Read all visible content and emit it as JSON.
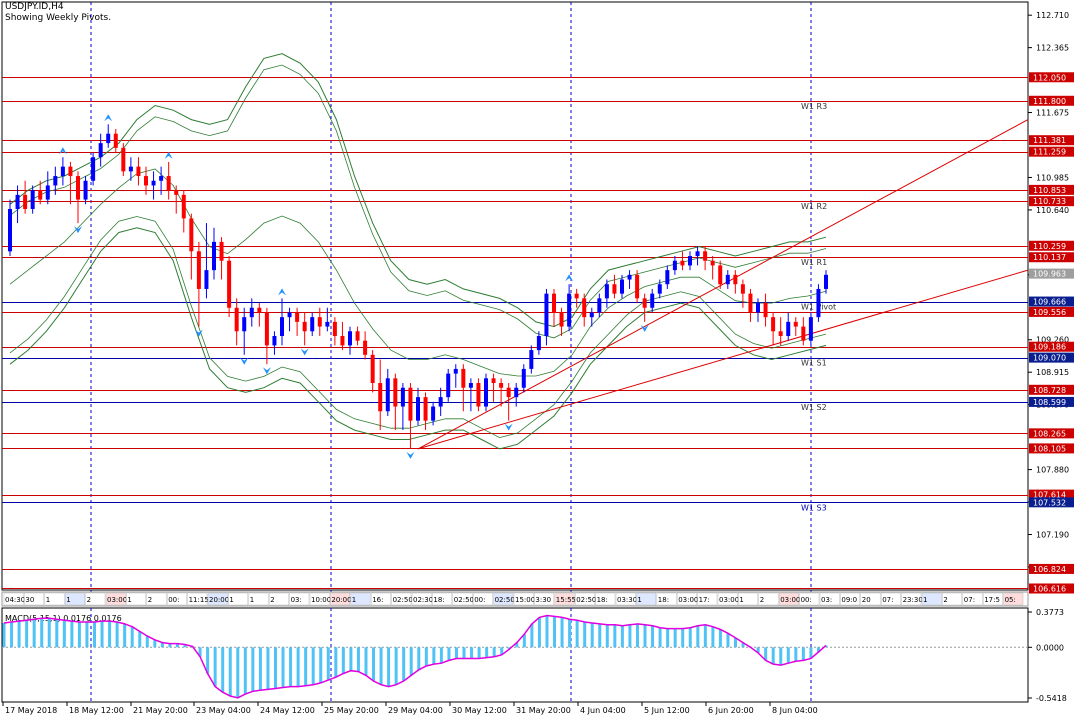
{
  "header": {
    "symbol": "USDJPY.ID,H4",
    "subtitle": "Showing Weekly Pivots."
  },
  "colors": {
    "background": "#ffffff",
    "axis": "#000000",
    "bull_candle": "#0000ff",
    "bear_candle": "#ff0000",
    "red_level": "#cc0000",
    "blue_level": "#0000aa",
    "bands": "#2e7d32",
    "trendline": "#dd0000",
    "grid_vertical": "#0000cc",
    "fractal": "#1e90ff",
    "macd_hist": "#4fc3f7",
    "macd_signal": "#e000e0",
    "label_red_bg": "#cc0000",
    "label_blue_bg": "#0a1f8f",
    "label_gray_bg": "#9e9e9e",
    "label_text": "#ffffff"
  },
  "price_axis": {
    "ticks": [
      "112.710",
      "112.365",
      "111.675",
      "110.985",
      "110.640",
      "109.950",
      "109.260",
      "108.915",
      "108.570",
      "107.880",
      "107.535",
      "107.190",
      "106.845"
    ]
  },
  "pivot_labels": {
    "r3": "W1 R3",
    "r2": "W1 R2",
    "r1": "W1 R1",
    "pivot": "W1 Pivot",
    "s1": "W1 S1",
    "s2": "W1 S2",
    "s3": "W1 S3"
  },
  "level_tags": [
    {
      "text": "112.050",
      "kind": "red",
      "price": 112.05
    },
    {
      "text": "111.800",
      "kind": "red",
      "price": 111.8
    },
    {
      "text": "111.381",
      "kind": "red",
      "price": 111.381
    },
    {
      "text": "111.259",
      "kind": "red",
      "price": 111.259
    },
    {
      "text": "110.853",
      "kind": "red",
      "price": 110.853
    },
    {
      "text": "110.733",
      "kind": "red",
      "price": 110.733
    },
    {
      "text": "110.259",
      "kind": "red",
      "price": 110.259
    },
    {
      "text": "110.137",
      "kind": "red",
      "price": 110.137
    },
    {
      "text": "109.963",
      "kind": "gray",
      "price": 109.963
    },
    {
      "text": "109.666",
      "kind": "blue",
      "price": 109.666
    },
    {
      "text": "109.556",
      "kind": "red",
      "price": 109.556
    },
    {
      "text": "109.186",
      "kind": "red",
      "price": 109.186
    },
    {
      "text": "109.070",
      "kind": "blue",
      "price": 109.07
    },
    {
      "text": "108.728",
      "kind": "red",
      "price": 108.728
    },
    {
      "text": "108.599",
      "kind": "blue",
      "price": 108.599
    },
    {
      "text": "108.265",
      "kind": "red",
      "price": 108.265
    },
    {
      "text": "108.105",
      "kind": "red",
      "price": 108.105
    },
    {
      "text": "107.614",
      "kind": "red",
      "price": 107.614
    },
    {
      "text": "107.532",
      "kind": "blue",
      "price": 107.532
    },
    {
      "text": "106.824",
      "kind": "red",
      "price": 106.824
    },
    {
      "text": "106.616",
      "kind": "red",
      "price": 106.616
    }
  ],
  "macd": {
    "label": "MACD(5,15,1) 0.0176 0.0176",
    "ticks": [
      "0.3773",
      "0.0000",
      "-0.5418"
    ]
  },
  "time_axis": {
    "labels": [
      "17 May 2018",
      "18 May 12:00",
      "21 May 20:00",
      "23 May 04:00",
      "24 May 12:00",
      "25 May 20:00",
      "29 May 04:00",
      "30 May 12:00",
      "31 May 20:00",
      "4 Jun 04:00",
      "5 Jun 12:00",
      "6 Jun 20:00",
      "8 Jun 04:00"
    ]
  },
  "session_strip": {
    "texts": [
      "04:30",
      "30",
      "1",
      "1",
      "2",
      "03:00",
      "1",
      "2",
      "00:",
      "11:15",
      "20:00",
      "1",
      "1",
      "2",
      "03:",
      "10:00",
      "20:00",
      "1",
      "16:",
      "02:50",
      "02:30",
      "18:",
      "02:50",
      "00:",
      "02:50",
      "15:00",
      "3:30",
      "15:55",
      "02:50",
      "18:",
      "03:30",
      "1",
      "18:",
      "03:00",
      "17:",
      "03:00",
      "1",
      "2",
      "03:00",
      "00:",
      "03:",
      "09:0",
      "20",
      "07:",
      "23:30",
      "1",
      "2",
      "07:",
      "17:5",
      "05:"
    ]
  },
  "chart_data": {
    "type": "candlestick",
    "title": "USDJPY.ID,H4",
    "subtitle": "Showing Weekly Pivots.",
    "x_range": [
      "17 May 2018",
      "8 Jun 2018"
    ],
    "ylim": [
      106.6,
      112.85
    ],
    "weekly_pivots": {
      "R3": 111.8,
      "R2": 110.733,
      "R1": 110.137,
      "Pivot": 109.666,
      "S1": 109.07,
      "S2": 108.599,
      "S3": 107.532
    },
    "candles": [
      [
        110.2,
        110.65,
        110.75,
        110.15
      ],
      [
        110.65,
        110.8,
        110.9,
        110.5
      ],
      [
        110.8,
        110.65,
        110.95,
        110.6
      ],
      [
        110.65,
        110.85,
        110.9,
        110.6
      ],
      [
        110.85,
        110.75,
        110.95,
        110.7
      ],
      [
        110.75,
        110.9,
        111.05,
        110.7
      ],
      [
        110.9,
        111.0,
        111.1,
        110.8
      ],
      [
        111.0,
        111.1,
        111.2,
        110.9
      ],
      [
        111.1,
        111.0,
        111.15,
        110.7
      ],
      [
        111.0,
        110.75,
        111.05,
        110.5
      ],
      [
        110.75,
        110.95,
        111.0,
        110.7
      ],
      [
        110.95,
        111.2,
        111.25,
        110.9
      ],
      [
        111.2,
        111.35,
        111.45,
        111.1
      ],
      [
        111.35,
        111.45,
        111.55,
        111.3
      ],
      [
        111.45,
        111.3,
        111.5,
        111.25
      ],
      [
        111.3,
        111.05,
        111.35,
        111.0
      ],
      [
        111.05,
        111.1,
        111.2,
        110.95
      ],
      [
        111.1,
        111.0,
        111.2,
        110.9
      ],
      [
        111.0,
        110.9,
        111.1,
        110.8
      ],
      [
        110.9,
        110.95,
        111.05,
        110.75
      ],
      [
        110.95,
        111.0,
        111.1,
        110.8
      ],
      [
        111.0,
        110.85,
        111.15,
        110.75
      ],
      [
        110.85,
        110.8,
        110.9,
        110.6
      ],
      [
        110.8,
        110.55,
        110.85,
        110.4
      ],
      [
        110.55,
        110.2,
        110.6,
        109.9
      ],
      [
        110.2,
        109.8,
        110.3,
        109.4
      ],
      [
        109.8,
        110.0,
        110.5,
        109.7
      ],
      [
        110.0,
        110.3,
        110.45,
        109.9
      ],
      [
        110.3,
        110.1,
        110.35,
        109.9
      ],
      [
        110.1,
        109.6,
        110.15,
        109.5
      ],
      [
        109.6,
        109.35,
        109.7,
        109.2
      ],
      [
        109.35,
        109.5,
        109.6,
        109.1
      ],
      [
        109.5,
        109.6,
        109.7,
        109.4
      ],
      [
        109.6,
        109.55,
        109.65,
        109.4
      ],
      [
        109.55,
        109.2,
        109.6,
        109.0
      ],
      [
        109.2,
        109.3,
        109.35,
        109.1
      ],
      [
        109.3,
        109.5,
        109.7,
        109.2
      ],
      [
        109.5,
        109.55,
        109.6,
        109.35
      ],
      [
        109.55,
        109.45,
        109.6,
        109.3
      ],
      [
        109.45,
        109.35,
        109.55,
        109.2
      ],
      [
        109.35,
        109.5,
        109.55,
        109.3
      ],
      [
        109.5,
        109.4,
        109.6,
        109.3
      ],
      [
        109.4,
        109.45,
        109.6,
        109.35
      ],
      [
        109.45,
        109.3,
        109.5,
        109.2
      ],
      [
        109.3,
        109.2,
        109.45,
        109.15
      ],
      [
        109.2,
        109.35,
        109.4,
        109.1
      ],
      [
        109.35,
        109.25,
        109.4,
        109.2
      ],
      [
        109.25,
        109.1,
        109.35,
        109.05
      ],
      [
        109.1,
        108.8,
        109.15,
        108.7
      ],
      [
        108.8,
        108.5,
        109.05,
        108.3
      ],
      [
        108.5,
        108.85,
        108.95,
        108.45
      ],
      [
        108.85,
        108.55,
        108.9,
        108.3
      ],
      [
        108.55,
        108.75,
        108.8,
        108.3
      ],
      [
        108.75,
        108.4,
        108.8,
        108.1
      ],
      [
        108.4,
        108.65,
        108.75,
        108.35
      ],
      [
        108.65,
        108.4,
        108.7,
        108.3
      ],
      [
        108.4,
        108.55,
        108.6,
        108.35
      ],
      [
        108.55,
        108.65,
        108.75,
        108.45
      ],
      [
        108.65,
        108.9,
        108.95,
        108.6
      ],
      [
        108.9,
        108.95,
        109.0,
        108.75
      ],
      [
        108.95,
        108.75,
        109.0,
        108.5
      ],
      [
        108.75,
        108.8,
        108.85,
        108.5
      ],
      [
        108.8,
        108.55,
        108.85,
        108.5
      ],
      [
        108.55,
        108.85,
        108.9,
        108.5
      ],
      [
        108.85,
        108.8,
        108.9,
        108.6
      ],
      [
        108.8,
        108.75,
        108.85,
        108.55
      ],
      [
        108.75,
        108.65,
        108.8,
        108.4
      ],
      [
        108.65,
        108.75,
        108.8,
        108.55
      ],
      [
        108.75,
        108.95,
        109.0,
        108.7
      ],
      [
        108.95,
        109.15,
        109.2,
        108.9
      ],
      [
        109.15,
        109.3,
        109.35,
        109.1
      ],
      [
        109.3,
        109.75,
        109.8,
        109.2
      ],
      [
        109.75,
        109.55,
        109.8,
        109.4
      ],
      [
        109.55,
        109.4,
        109.6,
        109.3
      ],
      [
        109.4,
        109.75,
        109.85,
        109.35
      ],
      [
        109.75,
        109.7,
        109.8,
        109.6
      ],
      [
        109.7,
        109.5,
        109.75,
        109.4
      ],
      [
        109.5,
        109.55,
        109.6,
        109.4
      ],
      [
        109.55,
        109.7,
        109.75,
        109.5
      ],
      [
        109.7,
        109.85,
        109.9,
        109.6
      ],
      [
        109.85,
        109.75,
        109.95,
        109.7
      ],
      [
        109.75,
        109.9,
        109.95,
        109.7
      ],
      [
        109.9,
        109.95,
        110.0,
        109.8
      ],
      [
        109.95,
        109.7,
        110.0,
        109.65
      ],
      [
        109.7,
        109.6,
        109.75,
        109.45
      ],
      [
        109.6,
        109.75,
        109.8,
        109.55
      ],
      [
        109.75,
        109.85,
        109.9,
        109.7
      ],
      [
        109.85,
        110.0,
        110.05,
        109.8
      ],
      [
        110.0,
        110.1,
        110.15,
        109.95
      ],
      [
        110.1,
        110.05,
        110.2,
        110.0
      ],
      [
        110.05,
        110.15,
        110.2,
        110.0
      ],
      [
        110.15,
        110.2,
        110.25,
        110.05
      ],
      [
        110.2,
        110.1,
        110.25,
        110.0
      ],
      [
        110.1,
        110.05,
        110.15,
        109.9
      ],
      [
        110.05,
        109.85,
        110.1,
        109.8
      ],
      [
        109.85,
        109.95,
        110.0,
        109.8
      ],
      [
        109.95,
        109.85,
        110.0,
        109.75
      ],
      [
        109.85,
        109.75,
        109.9,
        109.6
      ],
      [
        109.75,
        109.55,
        109.8,
        109.45
      ],
      [
        109.55,
        109.65,
        109.7,
        109.45
      ],
      [
        109.65,
        109.5,
        109.75,
        109.4
      ],
      [
        109.5,
        109.35,
        109.55,
        109.2
      ],
      [
        109.35,
        109.3,
        109.5,
        109.2
      ],
      [
        109.3,
        109.45,
        109.55,
        109.25
      ],
      [
        109.45,
        109.4,
        109.5,
        109.3
      ],
      [
        109.4,
        109.25,
        109.5,
        109.2
      ],
      [
        109.25,
        109.5,
        109.55,
        109.2
      ],
      [
        109.5,
        109.8,
        109.85,
        109.45
      ],
      [
        109.8,
        109.95,
        110.0,
        109.75
      ]
    ],
    "bollinger_outer_upper": [
      110.7,
      110.85,
      110.95,
      111.0,
      111.1,
      111.2,
      111.35,
      111.6,
      111.75,
      111.7,
      111.6,
      111.55,
      111.6,
      111.95,
      112.25,
      112.3,
      112.2,
      112.0,
      111.6,
      111.0,
      110.5,
      110.1,
      109.9,
      109.85,
      109.9,
      109.8,
      109.75,
      109.7,
      109.6,
      109.45,
      109.4,
      109.5,
      109.8,
      110.0,
      110.05,
      110.1,
      110.15,
      110.2,
      110.25,
      110.2,
      110.15,
      110.2,
      110.25,
      110.3,
      110.3,
      110.35
    ],
    "bollinger_outer_lower": [
      109.0,
      109.15,
      109.35,
      109.6,
      109.9,
      110.2,
      110.4,
      110.45,
      110.4,
      110.1,
      109.5,
      108.95,
      108.75,
      108.7,
      108.75,
      108.85,
      108.8,
      108.6,
      108.4,
      108.3,
      108.25,
      108.2,
      108.2,
      108.25,
      108.3,
      108.3,
      108.2,
      108.1,
      108.15,
      108.3,
      108.45,
      108.7,
      109.0,
      109.2,
      109.4,
      109.55,
      109.6,
      109.65,
      109.6,
      109.4,
      109.2,
      109.1,
      109.05,
      109.1,
      109.15,
      109.2
    ],
    "trend_upper": {
      "from": [
        "29 May 04:00",
        108.1
      ],
      "to": [
        "8 Jun",
        111.6
      ]
    },
    "trend_lower": {
      "from": [
        "29 May 04:00",
        108.1
      ],
      "to": [
        "8 Jun",
        110.0
      ]
    },
    "macd_histogram": [
      0.26,
      0.27,
      0.28,
      0.29,
      0.3,
      0.31,
      0.31,
      0.3,
      0.29,
      0.28,
      0.27,
      0.27,
      0.27,
      0.28,
      0.28,
      0.27,
      0.25,
      0.22,
      0.17,
      0.12,
      0.08,
      0.05,
      0.04,
      0.04,
      0.03,
      0.01,
      -0.1,
      -0.28,
      -0.42,
      -0.48,
      -0.52,
      -0.54,
      -0.5,
      -0.47,
      -0.46,
      -0.45,
      -0.44,
      -0.43,
      -0.42,
      -0.42,
      -0.41,
      -0.4,
      -0.38,
      -0.35,
      -0.32,
      -0.28,
      -0.25,
      -0.26,
      -0.3,
      -0.36,
      -0.4,
      -0.42,
      -0.4,
      -0.36,
      -0.3,
      -0.24,
      -0.2,
      -0.18,
      -0.17,
      -0.14,
      -0.12,
      -0.12,
      -0.12,
      -0.12,
      -0.11,
      -0.1,
      -0.08,
      -0.02,
      0.05,
      0.14,
      0.25,
      0.32,
      0.34,
      0.33,
      0.32,
      0.3,
      0.29,
      0.27,
      0.26,
      0.25,
      0.24,
      0.24,
      0.23,
      0.24,
      0.25,
      0.24,
      0.23,
      0.21,
      0.2,
      0.2,
      0.2,
      0.21,
      0.23,
      0.24,
      0.22,
      0.19,
      0.15,
      0.1,
      0.05,
      0.0,
      -0.06,
      -0.14,
      -0.18,
      -0.19,
      -0.17,
      -0.15,
      -0.14,
      -0.12,
      -0.05,
      0.02
    ],
    "macd_ylim": [
      -0.5418,
      0.3773
    ]
  }
}
